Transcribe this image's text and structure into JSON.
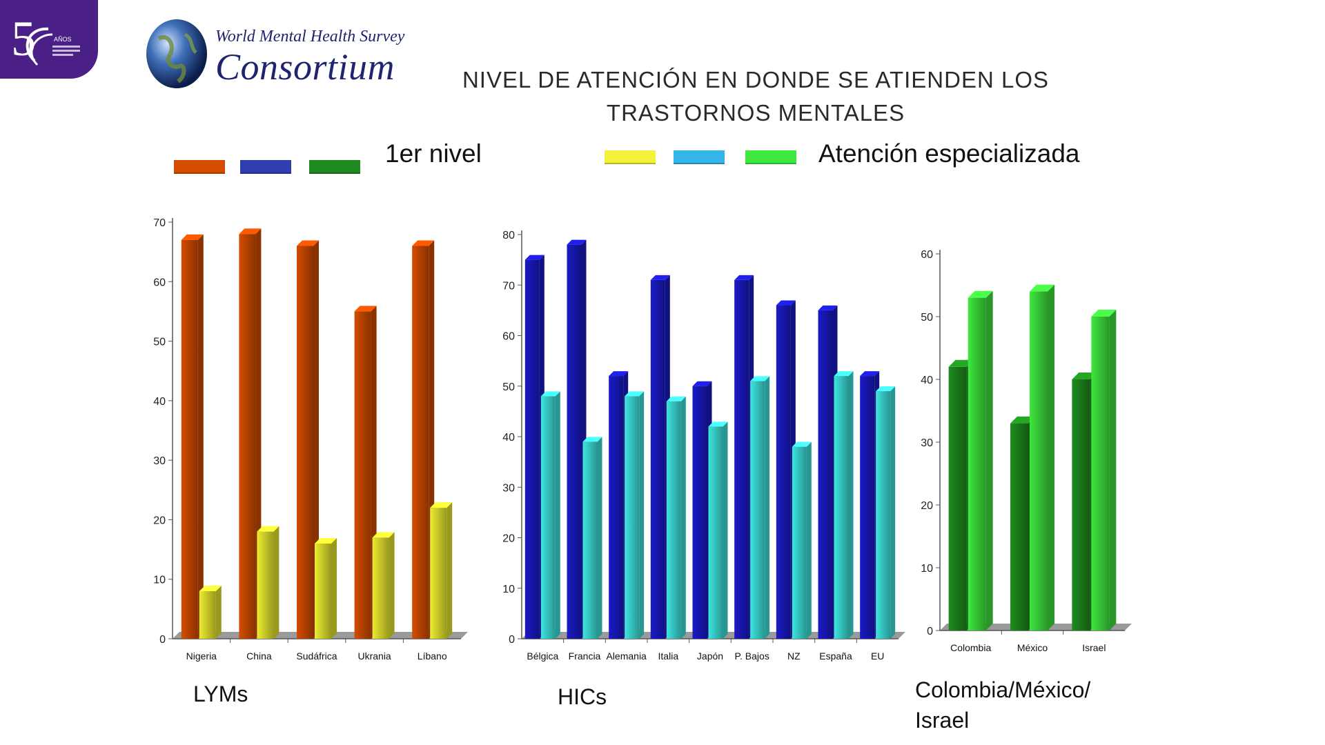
{
  "slide": {
    "title_line1": "NIVEL DE ATENCIÓN EN DONDE SE ATIENDEN LOS",
    "title_line2": "TRASTORNOS MENTALES"
  },
  "logo": {
    "subtitle": "World Mental Health Survey",
    "title": "Consortium"
  },
  "badge": {
    "text": "AÑOS",
    "color": "#4a1f86"
  },
  "legend": {
    "first_label": "1er nivel",
    "first_colors": [
      "#d44c00",
      "#2f3fb0",
      "#1f8a1f"
    ],
    "special_label": "Atención especializada",
    "special_colors": [
      "#f2f23a",
      "#35b6e8",
      "#3fe83f"
    ]
  },
  "panel_labels": {
    "lyms": "LYMs",
    "hics": "HICs",
    "cmi_line1": "Colombia/México/",
    "cmi_line2": "Israel"
  },
  "chart_data": [
    {
      "type": "bar",
      "categories": [
        "Nigeria",
        "China",
        "Sudáfrica",
        "Ukrania",
        "Líbano"
      ],
      "series": [
        {
          "values": [
            67,
            68,
            66,
            55,
            66
          ],
          "color": "#d44c00"
        },
        {
          "values": [
            8,
            18,
            16,
            17,
            22
          ],
          "color": "#ecec30"
        }
      ],
      "ylim": [
        0,
        70
      ],
      "yticks": [
        0,
        10,
        20,
        30,
        40,
        50,
        60,
        70
      ],
      "grid": false
    },
    {
      "type": "bar",
      "categories": [
        "Bélgica",
        "Francia",
        "Alemania",
        "Italia",
        "Japón",
        "P. Bajos",
        "NZ",
        "España",
        "EU"
      ],
      "series": [
        {
          "values": [
            75,
            78,
            52,
            71,
            50,
            71,
            66,
            65,
            52
          ],
          "color": "#1a1ac8"
        },
        {
          "values": [
            48,
            39,
            48,
            47,
            42,
            51,
            38,
            52,
            49
          ],
          "color": "#3ee6e0"
        }
      ],
      "ylim": [
        0,
        80
      ],
      "yticks": [
        0,
        10,
        20,
        30,
        40,
        50,
        60,
        70,
        80
      ],
      "grid": false
    },
    {
      "type": "bar",
      "categories": [
        "Colombia",
        "México",
        "Israel"
      ],
      "series": [
        {
          "values": [
            42,
            33,
            40
          ],
          "color": "#1e8c1e"
        },
        {
          "values": [
            53,
            54,
            50
          ],
          "color": "#3ee83e"
        }
      ],
      "ylim": [
        0,
        60
      ],
      "yticks": [
        0,
        10,
        20,
        30,
        40,
        50,
        60
      ],
      "grid": false
    }
  ]
}
